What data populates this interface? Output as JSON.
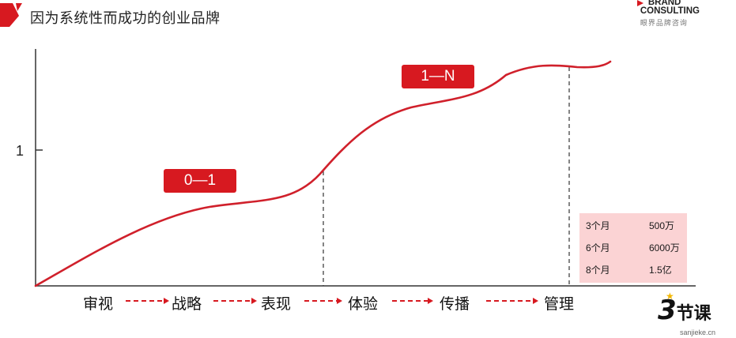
{
  "slide": {
    "title": "因为系统性而成功的创业品牌"
  },
  "brand": {
    "line1": "BRAND",
    "line2": "CONSULTING",
    "line3": "眼界品牌咨询"
  },
  "axis": {
    "y_tick_label": "1"
  },
  "badges": {
    "zero_to_one": "0—1",
    "one_to_n": "1—N"
  },
  "stats": [
    {
      "period": "3个月",
      "value": "500万"
    },
    {
      "period": "6个月",
      "value": "6000万"
    },
    {
      "period": "8个月",
      "value": "1.5亿"
    }
  ],
  "steps": [
    "审视",
    "战略",
    "表现",
    "体验",
    "传播",
    "管理"
  ],
  "logo": {
    "mark": "3",
    "name": "节课",
    "url": "sanjieke.cn"
  },
  "colors": {
    "accent": "#d71920",
    "stats_bg": "#fbd3d4"
  }
}
